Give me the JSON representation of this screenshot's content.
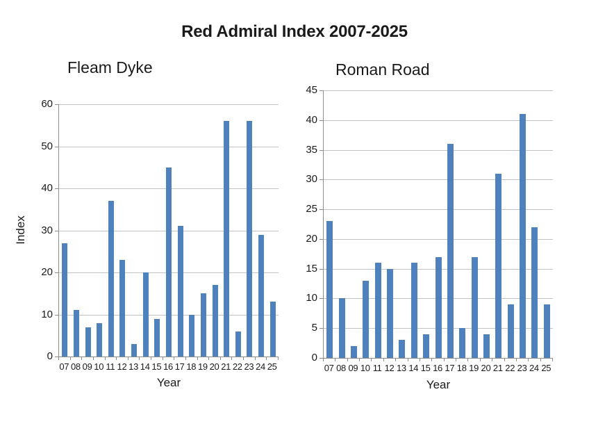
{
  "page_title": "Red Admiral Index 2007-2025",
  "colors": {
    "bar": "#4F81BD",
    "gridline": "#C3C3C3",
    "axis": "#8C8C8C",
    "text": "#1a1a1a"
  },
  "chart_data": [
    {
      "type": "bar",
      "title": "Fleam Dyke",
      "xlabel": "Year",
      "ylabel": "Index",
      "categories": [
        "07",
        "08",
        "09",
        "10",
        "11",
        "12",
        "13",
        "14",
        "15",
        "16",
        "17",
        "18",
        "19",
        "20",
        "21",
        "22",
        "23",
        "24",
        "25"
      ],
      "values": [
        27,
        11,
        7,
        8,
        37,
        23,
        3,
        20,
        9,
        45,
        31,
        10,
        15,
        17,
        56,
        6,
        56,
        29,
        13
      ],
      "ylim": [
        0,
        60
      ],
      "ytick_step": 10,
      "grid": true,
      "legend": "none",
      "bar_color": "#4F81BD"
    },
    {
      "type": "bar",
      "title": "Roman Road",
      "xlabel": "Year",
      "ylabel": "",
      "categories": [
        "07",
        "08",
        "09",
        "10",
        "11",
        "12",
        "13",
        "14",
        "15",
        "16",
        "17",
        "18",
        "19",
        "20",
        "21",
        "22",
        "23",
        "24",
        "25"
      ],
      "values": [
        23,
        10,
        2,
        13,
        16,
        15,
        3,
        16,
        4,
        17,
        36,
        5,
        17,
        4,
        31,
        9,
        41,
        22,
        9
      ],
      "ylim": [
        0,
        45
      ],
      "ytick_step": 5,
      "grid": true,
      "legend": "none",
      "bar_color": "#4F81BD"
    }
  ]
}
